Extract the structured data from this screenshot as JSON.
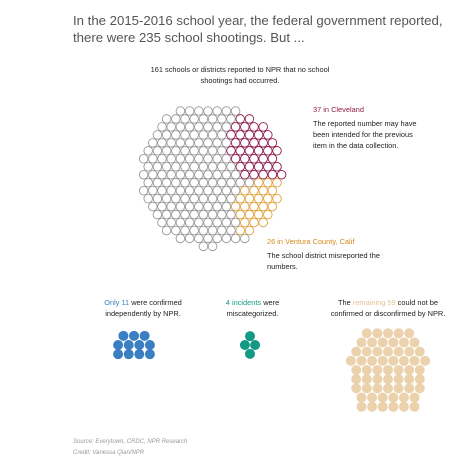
{
  "headline": "In the 2015-2016 school year, the federal government reported, there were 235 school shootings. But ...",
  "colors": {
    "gray": "#9a9a9a",
    "maroon": "#8e1b4a",
    "orange": "#e0a440",
    "blue": "#3a7fc2",
    "teal": "#139a84",
    "tan": "#ebd2ad"
  },
  "annotations": {
    "top_note": "161 schools or districts reported to NPR that no school shootings had occurred.",
    "cleveland_label": "37 in Cleveland",
    "cleveland_note": "The reported number may have been intended for the previous item in the data collection.",
    "ventura_label": "26 in Ventura County, Calif",
    "ventura_note": "The school district misreported the numbers.",
    "confirmed_highlight": "Only 11",
    "confirmed_rest": "were confirmed independently by NPR.",
    "miscategorized_highlight": "4 incidents",
    "miscategorized_rest": "were miscategorized.",
    "remaining_prefix": "The",
    "remaining_highlight": "remaining 59",
    "remaining_rest": "could not be confirmed or disconfirmed by NPR."
  },
  "source": "Source: Everytown, CRDC, NPR Research",
  "credit": "Credit: Vanessa Qian/NPR",
  "chart_data": {
    "type": "unit-dot",
    "total": 235,
    "categories": [
      "No shootings occurred",
      "Cleveland",
      "Ventura County, Calif",
      "Confirmed by NPR",
      "Miscategorized",
      "Could not be confirmed or disconfirmed"
    ],
    "values": [
      161,
      37,
      26,
      11,
      4,
      59
    ]
  }
}
